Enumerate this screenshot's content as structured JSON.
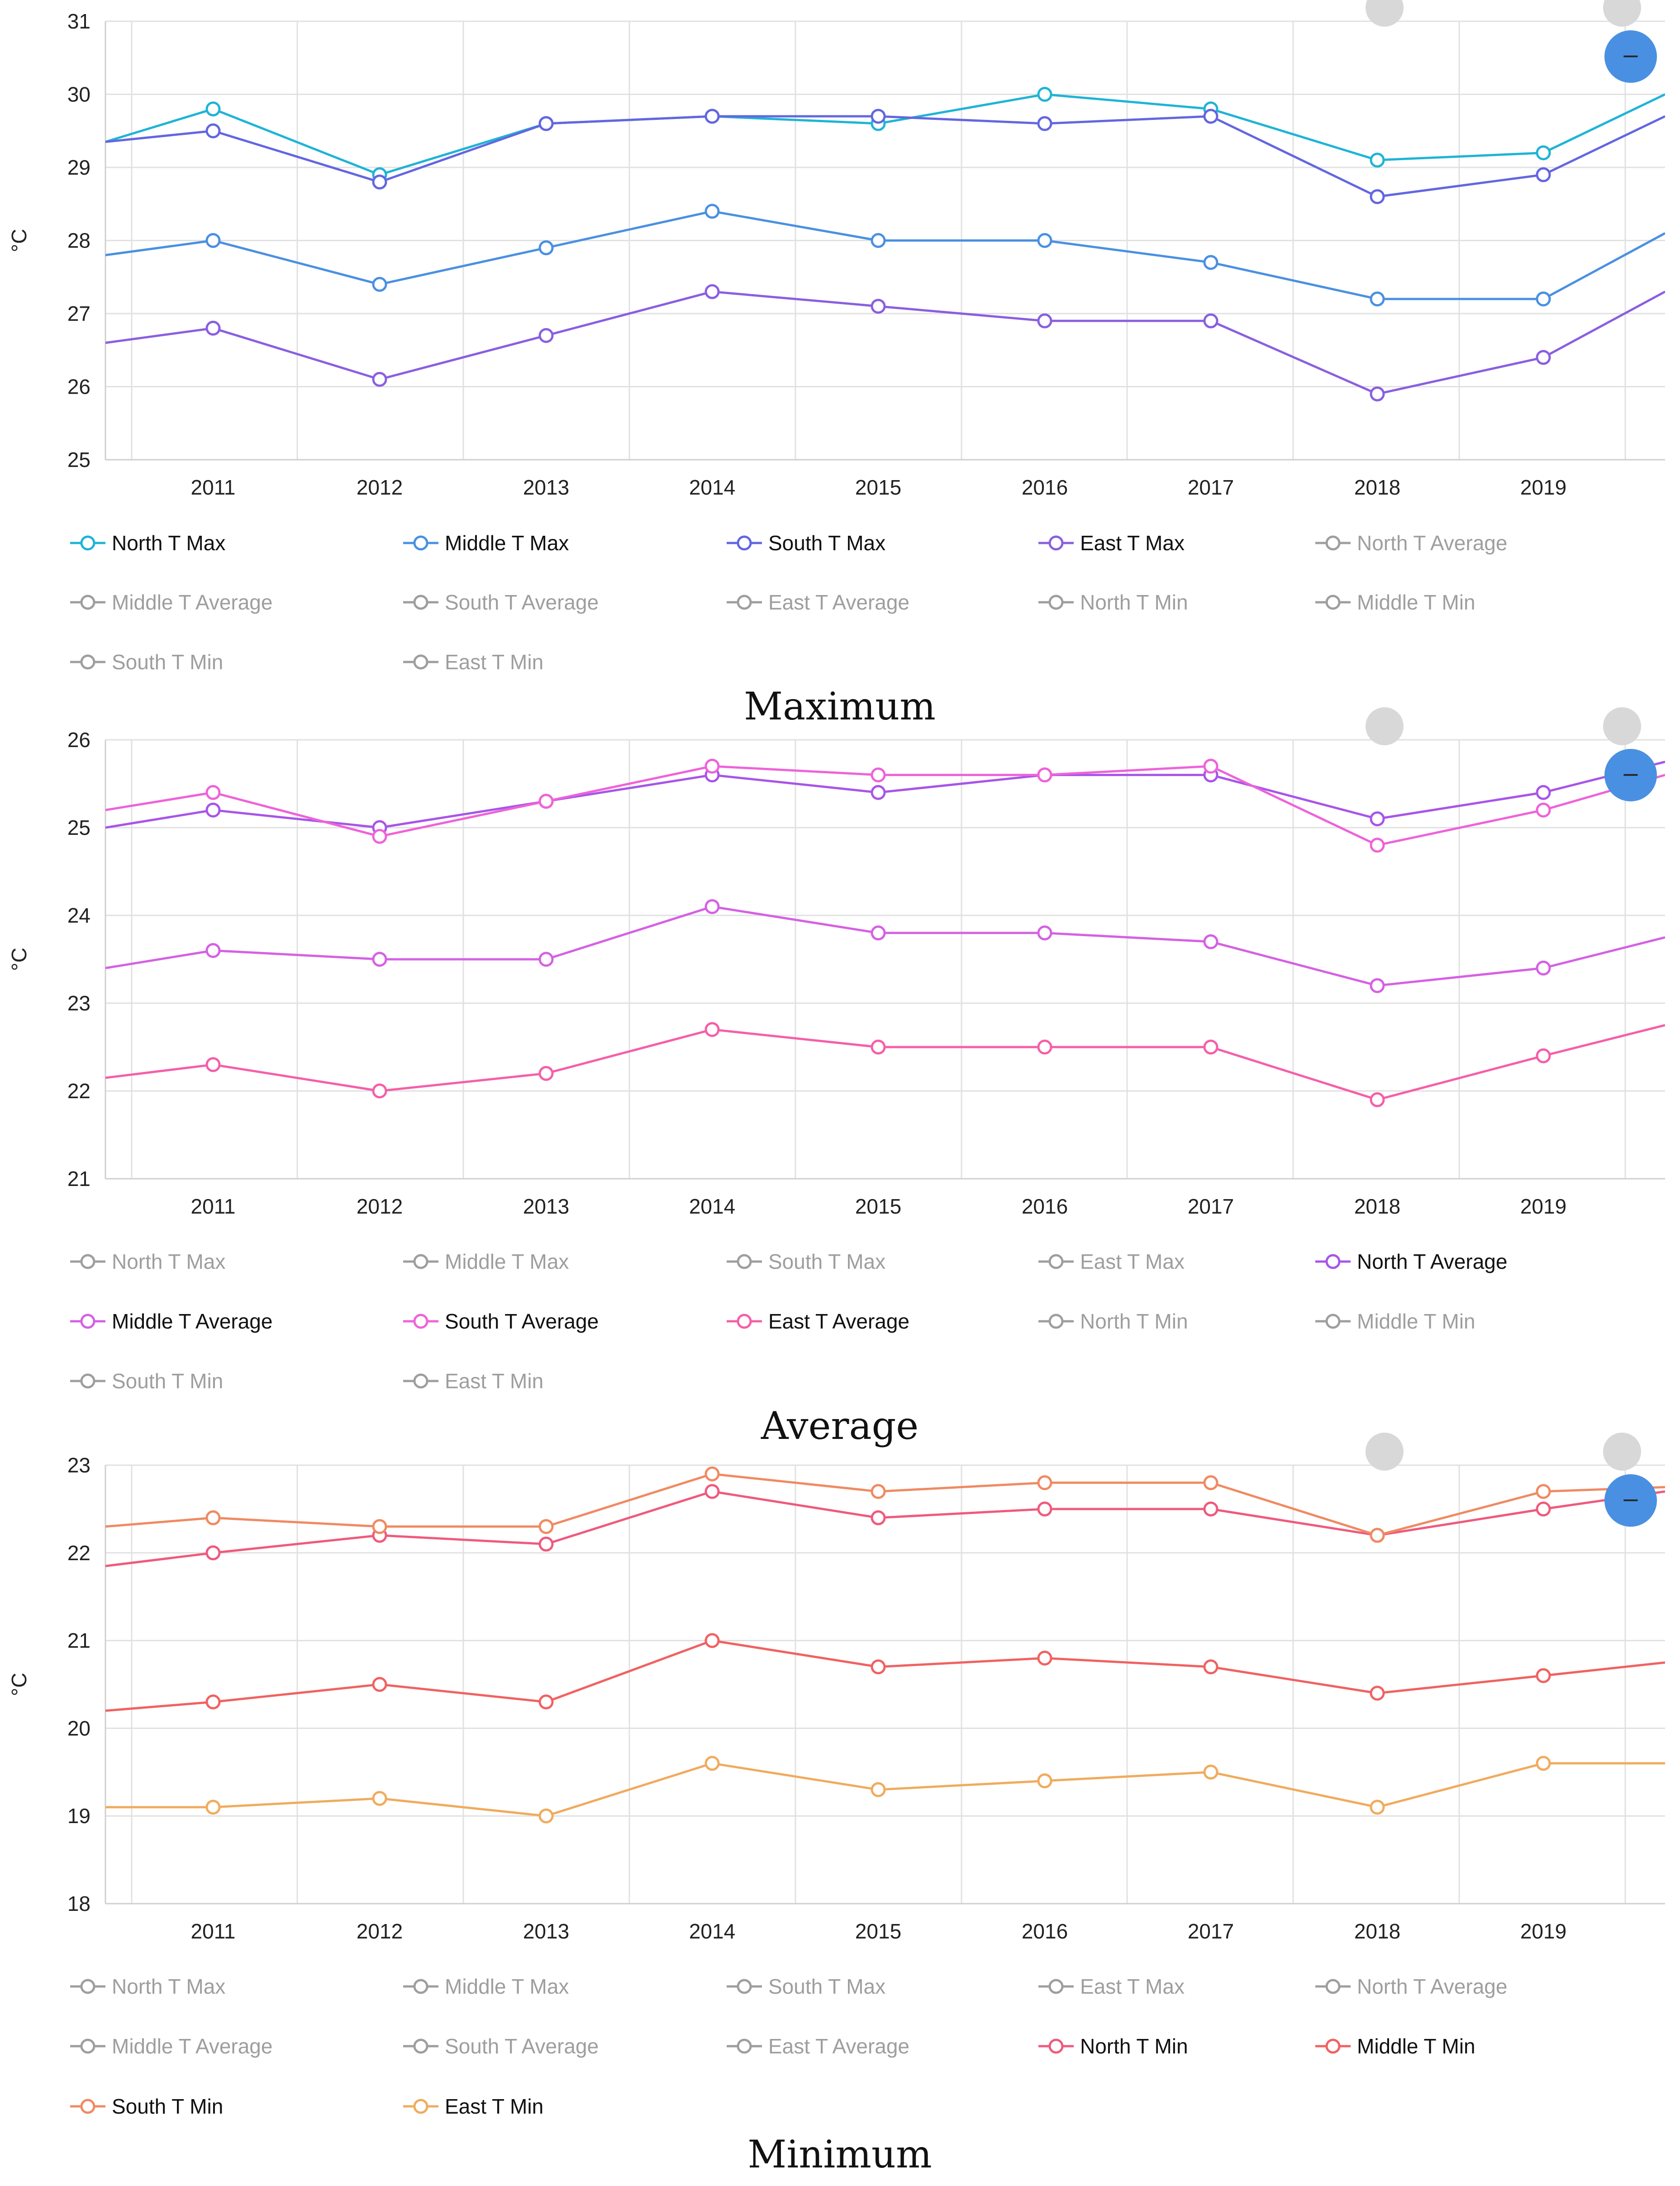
{
  "legend_items": [
    "North T Max",
    "Middle T Max",
    "South T Max",
    "East T Max",
    "North T Average",
    "Middle T Average",
    "South T Average",
    "East T Average",
    "North T Min",
    "Middle T Min",
    "South T Min",
    "East T Min"
  ],
  "inactive_color": "#9e9e9e",
  "zoom_button_glyph": "–",
  "chart_data": [
    {
      "type": "line",
      "title": "Maximum",
      "ylabel": "°C",
      "ylim": [
        25,
        31
      ],
      "yticks": [
        "25",
        "26",
        "27",
        "28",
        "29",
        "30",
        "31"
      ],
      "categories": [
        "2011",
        "2012",
        "2013",
        "2014",
        "2015",
        "2016",
        "2017",
        "2018",
        "2019"
      ],
      "series": [
        {
          "name": "North T Max",
          "color": "#1eb4d6",
          "edge_left": 29.35,
          "values": [
            29.8,
            28.9,
            29.6,
            29.7,
            29.6,
            30.0,
            29.8,
            29.1,
            29.2
          ],
          "edge_right": 30.0
        },
        {
          "name": "Middle T Max",
          "color": "#4a90e2",
          "edge_left": 27.8,
          "values": [
            28.0,
            27.4,
            27.9,
            28.4,
            28.0,
            28.0,
            27.7,
            27.2,
            27.2
          ],
          "edge_right": 28.1
        },
        {
          "name": "South T Max",
          "color": "#6366e0",
          "edge_left": 29.35,
          "values": [
            29.5,
            28.8,
            29.6,
            29.7,
            29.7,
            29.6,
            29.7,
            28.6,
            28.9
          ],
          "edge_right": 29.7
        },
        {
          "name": "East T Max",
          "color": "#8a5fe0",
          "edge_left": 26.6,
          "values": [
            26.8,
            26.1,
            26.7,
            27.3,
            27.1,
            26.9,
            26.9,
            25.9,
            26.4
          ],
          "edge_right": 27.3
        }
      ],
      "active": [
        "North T Max",
        "Middle T Max",
        "South T Max",
        "East T Max"
      ]
    },
    {
      "type": "line",
      "title": "Average",
      "ylabel": "°C",
      "ylim": [
        21,
        26
      ],
      "yticks": [
        "21",
        "22",
        "23",
        "24",
        "25",
        "26"
      ],
      "categories": [
        "2011",
        "2012",
        "2013",
        "2014",
        "2015",
        "2016",
        "2017",
        "2018",
        "2019"
      ],
      "series": [
        {
          "name": "North T Average",
          "color": "#a855e8",
          "edge_left": 25.0,
          "values": [
            25.2,
            25.0,
            25.3,
            25.6,
            25.4,
            25.6,
            25.6,
            25.1,
            25.4
          ],
          "edge_right": 25.75
        },
        {
          "name": "Middle T Average",
          "color": "#d561e3",
          "edge_left": 23.4,
          "values": [
            23.6,
            23.5,
            23.5,
            24.1,
            23.8,
            23.8,
            23.7,
            23.2,
            23.4
          ],
          "edge_right": 23.75
        },
        {
          "name": "South T Average",
          "color": "#ee63d9",
          "edge_left": 25.2,
          "values": [
            25.4,
            24.9,
            25.3,
            25.7,
            25.6,
            25.6,
            25.7,
            24.8,
            25.2
          ],
          "edge_right": 25.6
        },
        {
          "name": "East T Average",
          "color": "#f55fa8",
          "edge_left": 22.15,
          "values": [
            22.3,
            22.0,
            22.2,
            22.7,
            22.5,
            22.5,
            22.5,
            21.9,
            22.4
          ],
          "edge_right": 22.75
        }
      ],
      "active": [
        "North T Average",
        "Middle T Average",
        "South T Average",
        "East T Average"
      ]
    },
    {
      "type": "line",
      "title": "Minimum",
      "ylabel": "°C",
      "ylim": [
        18,
        23
      ],
      "yticks": [
        "18",
        "19",
        "20",
        "21",
        "22",
        "23"
      ],
      "categories": [
        "2011",
        "2012",
        "2013",
        "2014",
        "2015",
        "2016",
        "2017",
        "2018",
        "2019"
      ],
      "series": [
        {
          "name": "North T Min",
          "color": "#ef5a7d",
          "edge_left": 21.85,
          "values": [
            22.0,
            22.2,
            22.1,
            22.7,
            22.4,
            22.5,
            22.5,
            22.2,
            22.5
          ],
          "edge_right": 22.7
        },
        {
          "name": "Middle T Min",
          "color": "#f06262",
          "edge_left": 20.2,
          "values": [
            20.3,
            20.5,
            20.3,
            21.0,
            20.7,
            20.8,
            20.7,
            20.4,
            20.6
          ],
          "edge_right": 20.75
        },
        {
          "name": "South T Min",
          "color": "#f08a62",
          "edge_left": 22.3,
          "values": [
            22.4,
            22.3,
            22.3,
            22.9,
            22.7,
            22.8,
            22.8,
            22.2,
            22.7
          ],
          "edge_right": 22.75
        },
        {
          "name": "East T Min",
          "color": "#f0ab5e",
          "edge_left": 19.1,
          "values": [
            19.1,
            19.2,
            19.0,
            19.6,
            19.3,
            19.4,
            19.5,
            19.1,
            19.6
          ],
          "edge_right": 19.6
        }
      ],
      "active": [
        "North T Min",
        "Middle T Min",
        "South T Min",
        "East T Min"
      ]
    }
  ]
}
